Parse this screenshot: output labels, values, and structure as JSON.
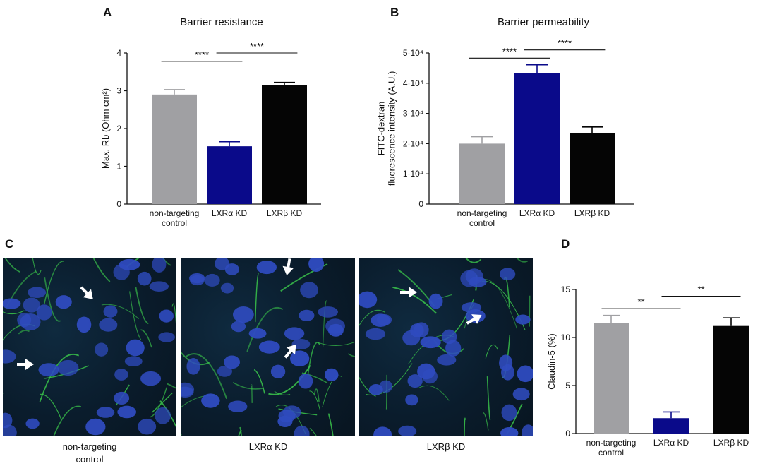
{
  "panels": {
    "A": "A",
    "B": "B",
    "C": "C",
    "D": "D"
  },
  "colors": {
    "control": "#a0a0a3",
    "lxra": "#0a0a8a",
    "lxrb": "#050505",
    "nuclei": "#2f4bbf",
    "membrane": "#39c24a",
    "arrow": "#ffffff"
  },
  "chart_data": [
    {
      "id": "A",
      "type": "bar",
      "title": "Barrier resistance",
      "xlabel": "",
      "ylabel": "Max. Rb (Ohm cm²)",
      "ylim": [
        0,
        4
      ],
      "yticks": [
        0,
        1,
        2,
        3,
        4
      ],
      "ytick_labels": [
        "0",
        "1",
        "2",
        "3",
        "4"
      ],
      "categories": [
        "non-targeting\ncontrol",
        "LXRα KD",
        "LXRβ KD"
      ],
      "values": [
        2.9,
        1.53,
        3.15
      ],
      "errors": [
        0.13,
        0.12,
        0.07
      ],
      "significance": [
        {
          "from": 0,
          "to": 1,
          "label": "****",
          "y": 3.78
        },
        {
          "from": 1,
          "to": 2,
          "label": "****",
          "y": 4.0
        }
      ]
    },
    {
      "id": "B",
      "type": "bar",
      "title": "Barrier permeability",
      "xlabel": "",
      "ylabel": "FITC-dextran\nfluorescence intensity (A.U.)",
      "ylim": [
        0,
        50000
      ],
      "yticks": [
        0,
        10000,
        20000,
        30000,
        40000,
        50000
      ],
      "ytick_labels": [
        "0",
        "1·10⁴",
        "2·10⁴",
        "3·10⁴",
        "4·10⁴",
        "5·10⁴"
      ],
      "categories": [
        "non-targeting\ncontrol",
        "LXRα KD",
        "LXRβ KD"
      ],
      "values": [
        20000,
        43300,
        23600
      ],
      "errors": [
        2300,
        2800,
        1900
      ],
      "significance": [
        {
          "from": 0,
          "to": 1,
          "label": "****",
          "y": 48300
        },
        {
          "from": 1,
          "to": 2,
          "label": "****",
          "y": 51000
        }
      ]
    },
    {
      "id": "D",
      "type": "bar",
      "title": "",
      "xlabel": "",
      "ylabel": "Claudin-5 (%)",
      "ylim": [
        0,
        15
      ],
      "yticks": [
        0,
        5,
        10,
        15
      ],
      "ytick_labels": [
        "0",
        "5",
        "10",
        "15"
      ],
      "categories": [
        "non-targeting\ncontrol",
        "LXRα KD",
        "LXRβ KD"
      ],
      "values": [
        11.5,
        1.6,
        11.2
      ],
      "errors": [
        0.8,
        0.65,
        0.85
      ],
      "significance": [
        {
          "from": 0,
          "to": 1,
          "label": "**",
          "y": 13.0
        },
        {
          "from": 1,
          "to": 2,
          "label": "**",
          "y": 14.3
        }
      ]
    }
  ],
  "micrographs": [
    {
      "caption": "non-targeting\ncontrol"
    },
    {
      "caption": "LXRα KD"
    },
    {
      "caption": "LXRβ KD"
    }
  ]
}
